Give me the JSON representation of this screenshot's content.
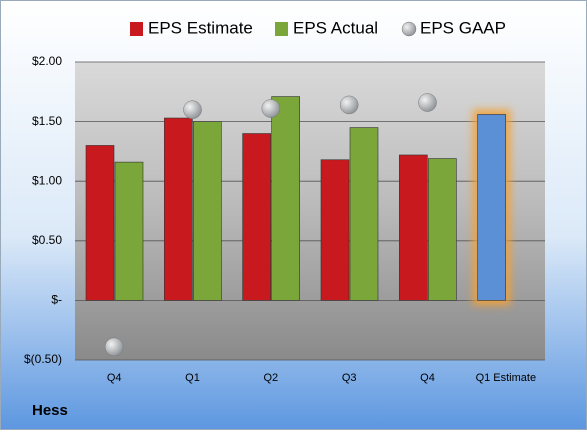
{
  "chart_data": {
    "type": "bar",
    "title": "Hess",
    "categories": [
      "Q4",
      "Q1",
      "Q2",
      "Q3",
      "Q4",
      "Q1 Estimate"
    ],
    "series": [
      {
        "name": "EPS Estimate",
        "color": "#c8191e",
        "colors": [
          "#c8191e",
          "#c8191e",
          "#c8191e",
          "#c8191e",
          "#c8191e",
          "#5b8fd6"
        ],
        "values": [
          1.3,
          1.53,
          1.4,
          1.18,
          1.22,
          1.56
        ]
      },
      {
        "name": "EPS Actual",
        "color": "#7aa63a",
        "values": [
          1.16,
          1.5,
          1.71,
          1.45,
          1.19,
          null
        ]
      },
      {
        "name": "EPS GAAP",
        "color": "#b0b4b8",
        "type": "scatter",
        "values": [
          -0.39,
          1.6,
          1.61,
          1.64,
          1.66,
          null
        ]
      }
    ],
    "ylim": [
      -0.5,
      2.0
    ],
    "yticks": [
      {
        "value": -0.5,
        "label": "$(0.50)"
      },
      {
        "value": 0,
        "label": "$-"
      },
      {
        "value": 0.5,
        "label": "$0.50"
      },
      {
        "value": 1.0,
        "label": "$1.00"
      },
      {
        "value": 1.5,
        "label": "$1.50"
      },
      {
        "value": 2.0,
        "label": "$2.00"
      }
    ],
    "grid": true
  }
}
